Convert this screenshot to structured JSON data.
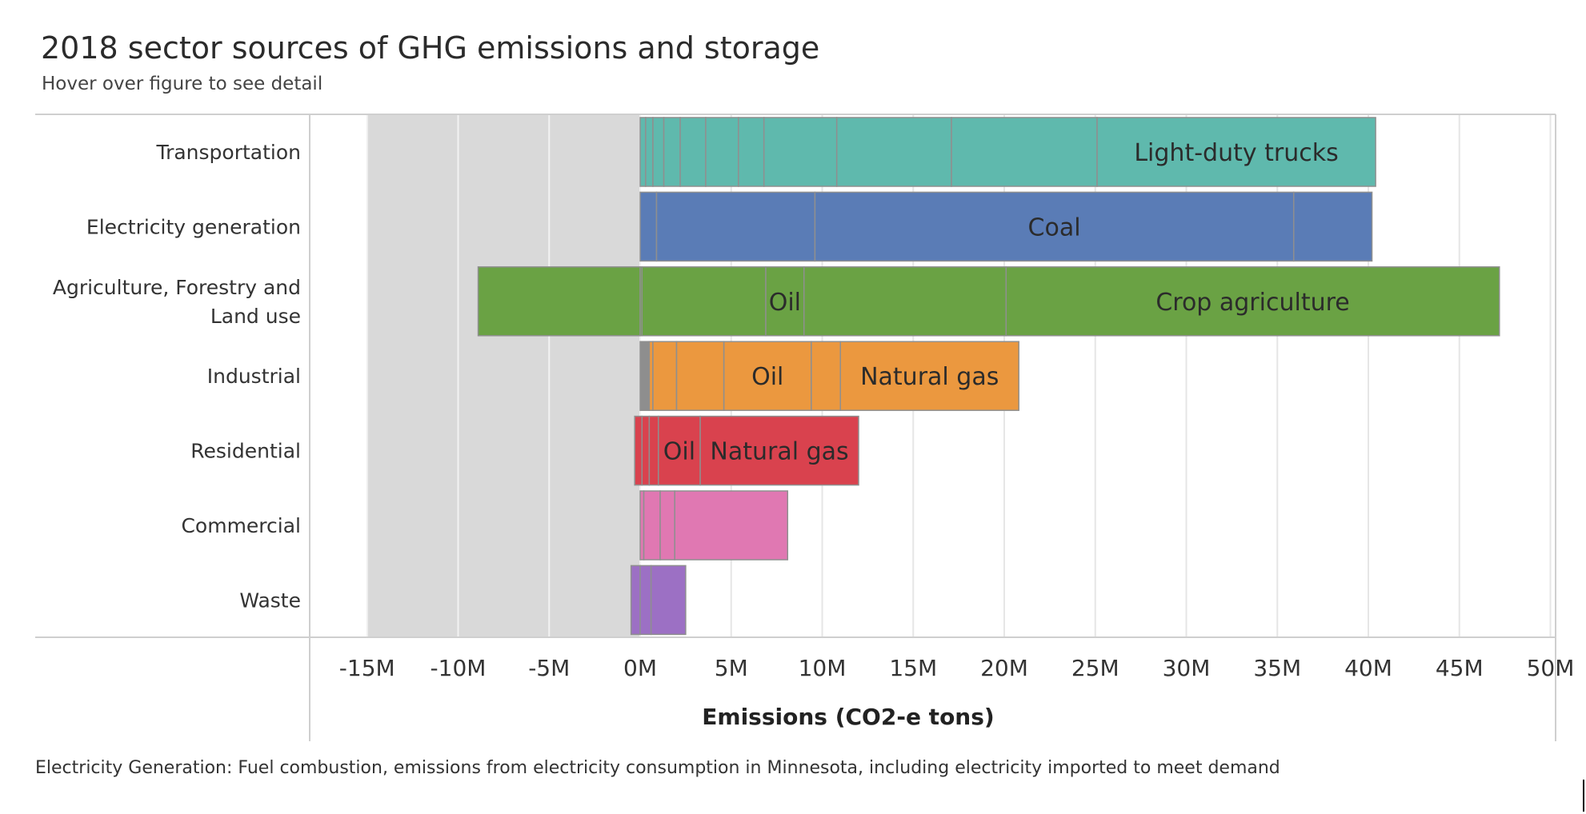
{
  "chart_data": {
    "type": "bar",
    "orientation": "horizontal",
    "stacked": true,
    "title": "2018 sector sources of GHG emissions and storage",
    "subtitle": "Hover over figure to see detail",
    "xlabel": "Emissions (CO2-e tons)",
    "xlim": [
      -18,
      50
    ],
    "xticks": [
      {
        "value": -15,
        "label": "-15M"
      },
      {
        "value": -10,
        "label": "-10M"
      },
      {
        "value": -5,
        "label": "-5M"
      },
      {
        "value": 0,
        "label": "0M"
      },
      {
        "value": 5,
        "label": "5M"
      },
      {
        "value": 10,
        "label": "10M"
      },
      {
        "value": 15,
        "label": "15M"
      },
      {
        "value": 20,
        "label": "20M"
      },
      {
        "value": 25,
        "label": "25M"
      },
      {
        "value": 30,
        "label": "30M"
      },
      {
        "value": 35,
        "label": "35M"
      },
      {
        "value": 40,
        "label": "40M"
      },
      {
        "value": 45,
        "label": "45M"
      },
      {
        "value": 50,
        "label": "50M"
      }
    ],
    "shaded_region": [
      -15,
      0
    ],
    "grid": true,
    "categories": [
      {
        "label": [
          "Transportation"
        ],
        "color": "#5fb9ad",
        "segments": [
          {
            "start": 0,
            "end": 0.3,
            "label": ""
          },
          {
            "start": 0.3,
            "end": 0.7,
            "label": ""
          },
          {
            "start": 0.7,
            "end": 1.3,
            "label": ""
          },
          {
            "start": 1.3,
            "end": 2.2,
            "label": ""
          },
          {
            "start": 2.2,
            "end": 3.6,
            "label": ""
          },
          {
            "start": 3.6,
            "end": 5.4,
            "label": ""
          },
          {
            "start": 5.4,
            "end": 6.8,
            "label": ""
          },
          {
            "start": 6.8,
            "end": 10.8,
            "label": ""
          },
          {
            "start": 10.8,
            "end": 17.1,
            "label": ""
          },
          {
            "start": 17.1,
            "end": 25.1,
            "label": ""
          },
          {
            "start": 25.1,
            "end": 40.4,
            "label": "Light-duty trucks"
          }
        ]
      },
      {
        "label": [
          "Electricity generation"
        ],
        "color": "#5a7cb6",
        "segments": [
          {
            "start": 0,
            "end": 0.9,
            "label": ""
          },
          {
            "start": 0.9,
            "end": 9.6,
            "label": ""
          },
          {
            "start": 9.6,
            "end": 35.9,
            "label": "Coal"
          },
          {
            "start": 35.9,
            "end": 40.2,
            "label": ""
          }
        ]
      },
      {
        "label": [
          "Agriculture, Forestry and",
          "Land use"
        ],
        "color": "#6aa244",
        "segments": [
          {
            "start": -8.9,
            "end": 0,
            "label": ""
          },
          {
            "start": 0,
            "end": 0.1,
            "label": ""
          },
          {
            "start": 0.1,
            "end": 6.9,
            "label": ""
          },
          {
            "start": 6.9,
            "end": 9.0,
            "label": "Oil"
          },
          {
            "start": 9.0,
            "end": 20.1,
            "label": ""
          },
          {
            "start": 20.1,
            "end": 47.2,
            "label": "Crop agriculture"
          }
        ]
      },
      {
        "label": [
          "Industrial"
        ],
        "color": "#eb983f",
        "segments": [
          {
            "start": 0,
            "end": 0.5,
            "label": "",
            "color": "#8e8e8e"
          },
          {
            "start": 0.5,
            "end": 0.7,
            "label": ""
          },
          {
            "start": 0.7,
            "end": 2.0,
            "label": ""
          },
          {
            "start": 2.0,
            "end": 4.6,
            "label": ""
          },
          {
            "start": 4.6,
            "end": 9.4,
            "label": "Oil"
          },
          {
            "start": 9.4,
            "end": 11.0,
            "label": ""
          },
          {
            "start": 11.0,
            "end": 20.8,
            "label": "Natural gas"
          }
        ]
      },
      {
        "label": [
          "Residential"
        ],
        "color": "#d9424e",
        "segments": [
          {
            "start": -0.3,
            "end": 0.1,
            "label": ""
          },
          {
            "start": 0.1,
            "end": 0.5,
            "label": ""
          },
          {
            "start": 0.5,
            "end": 1.0,
            "label": ""
          },
          {
            "start": 1.0,
            "end": 3.3,
            "label": "Oil"
          },
          {
            "start": 3.3,
            "end": 12.0,
            "label": "Natural gas"
          }
        ]
      },
      {
        "label": [
          "Commercial"
        ],
        "color": "#e078b2",
        "segments": [
          {
            "start": 0,
            "end": 0.2,
            "label": ""
          },
          {
            "start": 0.2,
            "end": 1.1,
            "label": ""
          },
          {
            "start": 1.1,
            "end": 1.9,
            "label": ""
          },
          {
            "start": 1.9,
            "end": 8.1,
            "label": ""
          }
        ]
      },
      {
        "label": [
          "Waste"
        ],
        "color": "#9c70c4",
        "segments": [
          {
            "start": -0.5,
            "end": 0,
            "label": ""
          },
          {
            "start": 0,
            "end": 0.6,
            "label": ""
          },
          {
            "start": 0.6,
            "end": 2.5,
            "label": ""
          }
        ]
      }
    ]
  },
  "footnote": "Electricity Generation: Fuel combustion, emissions from electricity consumption in Minnesota, including electricity imported to meet demand"
}
